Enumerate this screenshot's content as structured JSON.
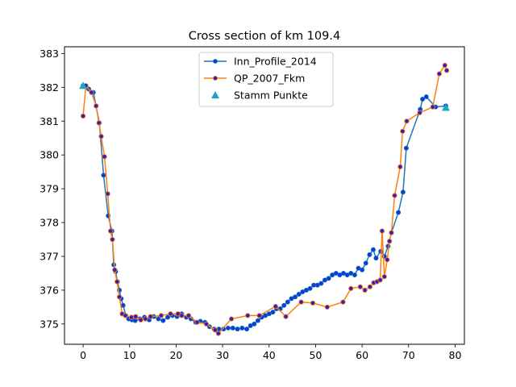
{
  "chart_data": {
    "type": "line",
    "title": "Cross section of km 109.4",
    "xlabel": "",
    "ylabel": "",
    "xlim": [
      -4,
      82
    ],
    "ylim": [
      374.4,
      383.2
    ],
    "xticks": [
      0,
      10,
      20,
      30,
      40,
      50,
      60,
      70,
      80
    ],
    "yticks": [
      375,
      376,
      377,
      378,
      379,
      380,
      381,
      382,
      383
    ],
    "grid": false,
    "legend_position": "top-center",
    "series": [
      {
        "name": "Inn_Profile_2014",
        "color": "#1f77b4",
        "marker_face": "#0a3fd6",
        "points": [
          [
            0,
            382.05
          ],
          [
            1.2,
            381.95
          ],
          [
            2.2,
            381.85
          ],
          [
            3.5,
            380.95
          ],
          [
            4.4,
            379.4
          ],
          [
            5.4,
            378.2
          ],
          [
            6.2,
            377.75
          ],
          [
            6.6,
            376.75
          ],
          [
            7.0,
            376.55
          ],
          [
            7.4,
            376.25
          ],
          [
            7.8,
            376.0
          ],
          [
            8.2,
            375.75
          ],
          [
            8.6,
            375.55
          ],
          [
            9.2,
            375.25
          ],
          [
            9.8,
            375.15
          ],
          [
            10.5,
            375.12
          ],
          [
            11.2,
            375.1
          ],
          [
            12.2,
            375.15
          ],
          [
            13.2,
            375.2
          ],
          [
            14.2,
            375.12
          ],
          [
            15.2,
            375.22
          ],
          [
            16.2,
            375.15
          ],
          [
            17.2,
            375.1
          ],
          [
            18.2,
            375.2
          ],
          [
            19.2,
            375.25
          ],
          [
            20.2,
            375.22
          ],
          [
            21.2,
            375.3
          ],
          [
            22.2,
            375.2
          ],
          [
            23.2,
            375.15
          ],
          [
            24.2,
            375.05
          ],
          [
            25.2,
            375.08
          ],
          [
            26.2,
            375.05
          ],
          [
            27.2,
            374.92
          ],
          [
            28.2,
            374.85
          ],
          [
            29.2,
            374.85
          ],
          [
            30.2,
            374.85
          ],
          [
            31.2,
            374.88
          ],
          [
            32.2,
            374.88
          ],
          [
            33.2,
            374.85
          ],
          [
            34.2,
            374.88
          ],
          [
            35.2,
            374.85
          ],
          [
            36.0,
            374.95
          ],
          [
            36.8,
            375.0
          ],
          [
            37.6,
            375.1
          ],
          [
            38.4,
            375.2
          ],
          [
            39.2,
            375.25
          ],
          [
            40.0,
            375.3
          ],
          [
            40.8,
            375.35
          ],
          [
            41.6,
            375.45
          ],
          [
            42.4,
            375.45
          ],
          [
            43.2,
            375.55
          ],
          [
            44.0,
            375.65
          ],
          [
            44.8,
            375.75
          ],
          [
            45.6,
            375.8
          ],
          [
            46.4,
            375.88
          ],
          [
            47.2,
            375.95
          ],
          [
            48.0,
            376.0
          ],
          [
            48.8,
            376.05
          ],
          [
            49.6,
            376.15
          ],
          [
            50.4,
            376.15
          ],
          [
            51.2,
            376.2
          ],
          [
            52.0,
            376.3
          ],
          [
            52.8,
            376.35
          ],
          [
            53.6,
            376.45
          ],
          [
            54.4,
            376.5
          ],
          [
            55.2,
            376.45
          ],
          [
            56.0,
            376.5
          ],
          [
            56.8,
            376.45
          ],
          [
            57.6,
            376.5
          ],
          [
            58.4,
            376.45
          ],
          [
            59.2,
            376.65
          ],
          [
            60.0,
            376.6
          ],
          [
            60.8,
            376.8
          ],
          [
            61.6,
            377.05
          ],
          [
            62.4,
            377.2
          ],
          [
            63.0,
            376.95
          ],
          [
            64.0,
            377.15
          ],
          [
            64.8,
            377.0
          ],
          [
            65.6,
            377.3
          ],
          [
            66.3,
            377.7
          ],
          [
            67.8,
            378.3
          ],
          [
            68.8,
            378.9
          ],
          [
            69.5,
            380.2
          ],
          [
            72.5,
            381.35
          ],
          [
            73.0,
            381.65
          ],
          [
            73.8,
            381.72
          ],
          [
            75.8,
            381.42
          ],
          [
            78.0,
            381.45
          ]
        ]
      },
      {
        "name": "QP_2007_Fkm",
        "color": "#ff7f0e",
        "marker_face": "#2a1fc8",
        "points": [
          [
            0,
            381.15
          ],
          [
            0.6,
            382.05
          ],
          [
            1.8,
            381.85
          ],
          [
            2.8,
            381.45
          ],
          [
            3.4,
            380.95
          ],
          [
            3.9,
            380.55
          ],
          [
            4.6,
            379.95
          ],
          [
            5.3,
            378.85
          ],
          [
            5.9,
            377.75
          ],
          [
            6.3,
            377.5
          ],
          [
            6.8,
            376.6
          ],
          [
            7.3,
            376.25
          ],
          [
            7.8,
            375.8
          ],
          [
            8.4,
            375.3
          ],
          [
            9.1,
            375.25
          ],
          [
            10.4,
            375.2
          ],
          [
            11.3,
            375.22
          ],
          [
            12.4,
            375.12
          ],
          [
            13.4,
            375.15
          ],
          [
            14.5,
            375.22
          ],
          [
            16.8,
            375.25
          ],
          [
            18.8,
            375.3
          ],
          [
            20.4,
            375.3
          ],
          [
            21.2,
            375.25
          ],
          [
            22.7,
            375.25
          ],
          [
            24.5,
            375.05
          ],
          [
            26.5,
            375.0
          ],
          [
            28.4,
            374.82
          ],
          [
            29.1,
            374.72
          ],
          [
            31.9,
            375.15
          ],
          [
            35.4,
            375.25
          ],
          [
            37.9,
            375.25
          ],
          [
            41.4,
            375.52
          ],
          [
            43.6,
            375.22
          ],
          [
            46.9,
            375.65
          ],
          [
            49.4,
            375.62
          ],
          [
            52.5,
            375.5
          ],
          [
            55.9,
            375.65
          ],
          [
            57.6,
            376.05
          ],
          [
            59.6,
            376.1
          ],
          [
            60.6,
            376.0
          ],
          [
            61.7,
            376.1
          ],
          [
            62.5,
            376.22
          ],
          [
            63.2,
            376.25
          ],
          [
            63.9,
            376.3
          ],
          [
            64.3,
            377.75
          ],
          [
            64.8,
            376.4
          ],
          [
            65.4,
            376.9
          ],
          [
            65.9,
            377.45
          ],
          [
            66.3,
            377.7
          ],
          [
            67.0,
            378.8
          ],
          [
            68.2,
            379.65
          ],
          [
            68.7,
            380.7
          ],
          [
            69.6,
            381.0
          ],
          [
            72.4,
            381.25
          ],
          [
            75.2,
            381.42
          ],
          [
            76.6,
            382.4
          ],
          [
            77.8,
            382.65
          ],
          [
            78.2,
            382.5
          ]
        ]
      },
      {
        "name": "Stamm Punkte",
        "color": "#17a8c8",
        "marker": "triangle",
        "points": [
          [
            0,
            382.05
          ],
          [
            78.0,
            381.4
          ]
        ]
      }
    ]
  }
}
